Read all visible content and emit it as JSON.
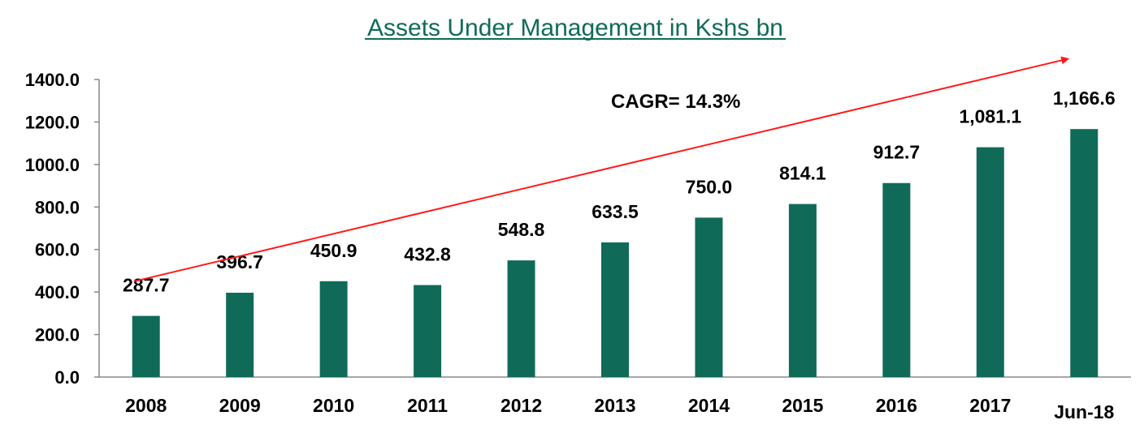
{
  "colors": {
    "bar": "#0f6b57",
    "title": "#0f6b57",
    "trend_arrow": "#ff1a1a",
    "axis": "#888888",
    "text": "#000000"
  },
  "chart_data": {
    "type": "bar",
    "title": "Assets Under Management in Kshs bn",
    "xlabel": "",
    "ylabel": "",
    "categories": [
      "2008",
      "2009",
      "2010",
      "2011",
      "2012",
      "2013",
      "2014",
      "2015",
      "2016",
      "2017",
      "Jun-18"
    ],
    "values": [
      287.7,
      396.7,
      450.9,
      432.8,
      548.8,
      633.5,
      750.0,
      814.1,
      912.7,
      1081.1,
      1166.6
    ],
    "data_labels": [
      "287.7",
      "396.7",
      "450.9",
      "432.8",
      "548.8",
      "633.5",
      "750.0",
      "814.1",
      "912.7",
      "1,081.1",
      "1,166.6"
    ],
    "ylim": [
      0,
      1400
    ],
    "yticks": [
      0,
      200,
      400,
      600,
      800,
      1000,
      1200,
      1400
    ],
    "ytick_labels": [
      "0.0",
      "200.0",
      "400.0",
      "600.0",
      "800.0",
      "1000.0",
      "1200.0",
      "1400.0"
    ],
    "grid": false,
    "legend": "none",
    "annotations": [
      {
        "text": "CAGR= 14.3%"
      }
    ],
    "trend_arrow": {
      "from": {
        "category": "2008",
        "value": 450
      },
      "to": {
        "category": "Jun-18",
        "value": 1497
      }
    }
  }
}
